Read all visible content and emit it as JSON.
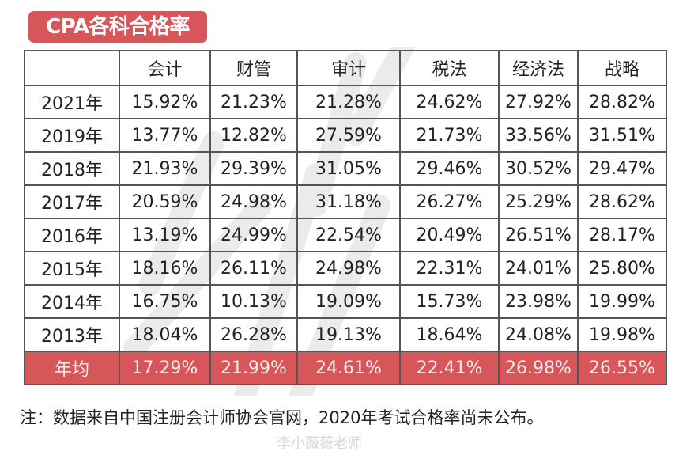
{
  "title": "CPA各科合格率",
  "table": {
    "corner": "",
    "columns": [
      "会计",
      "财管",
      "审计",
      "税法",
      "经济法",
      "战略"
    ],
    "rows": [
      {
        "year": "2021年",
        "values": [
          "15.92%",
          "21.23%",
          "21.28%",
          "24.62%",
          "27.92%",
          "28.82%"
        ],
        "styles": [
          "",
          "",
          "",
          "",
          "",
          ""
        ]
      },
      {
        "year": "2019年",
        "values": [
          "13.77%",
          "12.82%",
          "27.59%",
          "21.73%",
          "33.56%",
          "31.51%"
        ],
        "styles": [
          "",
          "",
          "",
          "",
          "red",
          "red"
        ]
      },
      {
        "year": "2018年",
        "values": [
          "21.93%",
          "29.39%",
          "31.05%",
          "29.46%",
          "30.52%",
          "29.47%"
        ],
        "styles": [
          "red",
          "red",
          "",
          "red",
          "",
          ""
        ]
      },
      {
        "year": "2017年",
        "values": [
          "20.59%",
          "24.98%",
          "31.18%",
          "26.27%",
          "25.29%",
          "28.62%"
        ],
        "styles": [
          "",
          "",
          "red",
          "",
          "",
          ""
        ]
      },
      {
        "year": "2016年",
        "values": [
          "13.19%",
          "24.99%",
          "22.54%",
          "20.49%",
          "26.51%",
          "28.17%"
        ],
        "styles": [
          "green",
          "",
          "",
          "",
          "",
          ""
        ]
      },
      {
        "year": "2015年",
        "values": [
          "18.16%",
          "26.11%",
          "24.98%",
          "22.31%",
          "24.01%",
          "25.80%"
        ],
        "styles": [
          "",
          "",
          "",
          "",
          "",
          ""
        ]
      },
      {
        "year": "2014年",
        "values": [
          "16.75%",
          "10.13%",
          "19.09%",
          "15.73%",
          "23.98%",
          "19.99%"
        ],
        "styles": [
          "",
          "green",
          "green",
          "green",
          "green",
          ""
        ]
      },
      {
        "year": "2013年",
        "values": [
          "18.04%",
          "26.28%",
          "19.13%",
          "18.64%",
          "24.08%",
          "19.98%"
        ],
        "styles": [
          "",
          "",
          "",
          "",
          "",
          "green"
        ]
      }
    ],
    "average": {
      "label": "年均",
      "values": [
        "17.29%",
        "21.99%",
        "24.61%",
        "22.41%",
        "26.98%",
        "26.55%"
      ]
    }
  },
  "note": "注：数据来自中国注册会计师协会官网，2020年考试合格率尚未公布。",
  "credit": "李小薇薇老师",
  "colors": {
    "accent": "#d6565a",
    "highlight_high": "#b81c22",
    "highlight_low": "#17a050",
    "border": "#555555"
  }
}
